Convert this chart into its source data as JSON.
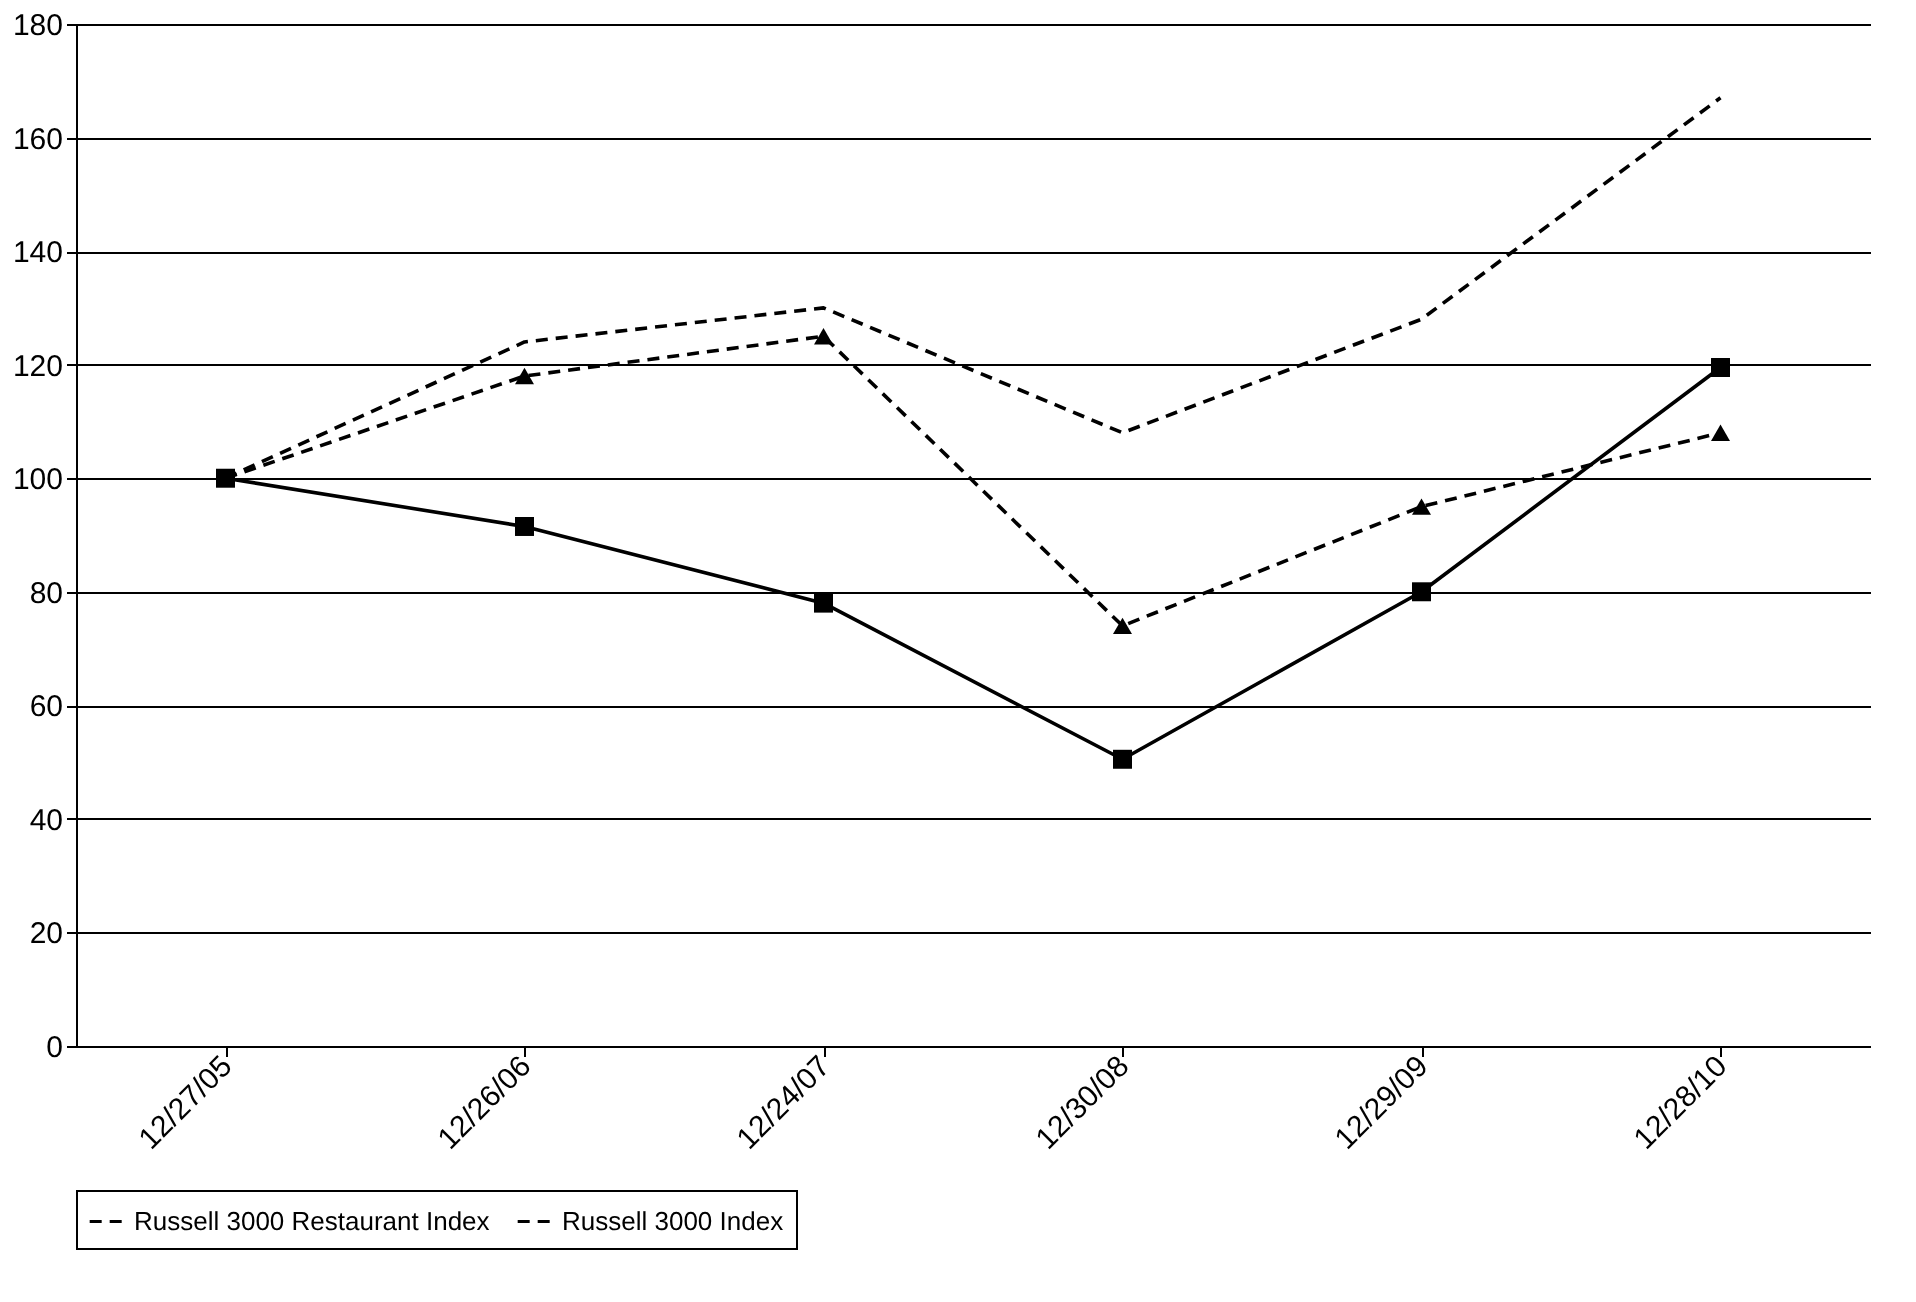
{
  "chart_data": {
    "type": "line",
    "categories": [
      "12/27/05",
      "12/26/06",
      "12/24/07",
      "12/30/08",
      "12/29/09",
      "12/28/10"
    ],
    "series": [
      {
        "name": "Russell 3000 Restaurant Index",
        "color": "#000000",
        "line_style": "dashed",
        "marker": "none",
        "values": [
          100,
          124,
          130,
          108,
          128,
          167
        ]
      },
      {
        "name": "Russell 3000 Index",
        "color": "#000000",
        "line_style": "dashed",
        "marker": "triangle",
        "values": [
          100,
          118,
          125,
          74,
          95,
          108
        ]
      },
      {
        "color": "#000000",
        "line_style": "solid",
        "marker": "square",
        "values": [
          100,
          91.5,
          78,
          50.5,
          80,
          119.5
        ]
      }
    ],
    "ylim": [
      0,
      180
    ],
    "yticks": [
      0,
      20,
      40,
      60,
      80,
      100,
      120,
      140,
      160,
      180
    ],
    "grid": "y",
    "legend": "bottom"
  }
}
